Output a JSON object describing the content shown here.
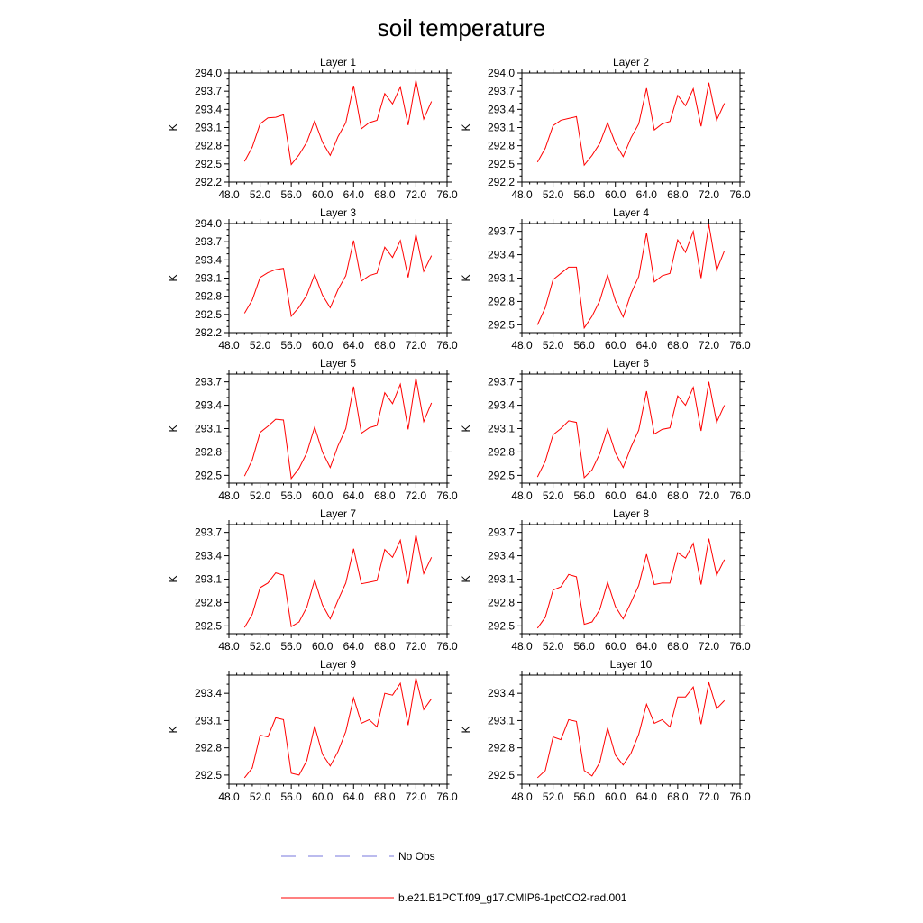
{
  "title": "soil temperature",
  "legend": {
    "entries": [
      {
        "label": "No Obs",
        "color": "#7777dd",
        "dash": true
      },
      {
        "label": "b.e21.B1PCT.f09_g17.CMIP6-1pctCO2-rad.001",
        "color": "#ff0000",
        "dash": false
      }
    ]
  },
  "chart_data": [
    {
      "type": "line",
      "title": "Layer 1",
      "xlabel": "",
      "ylabel": "K",
      "xlim": [
        48,
        76
      ],
      "ylim": [
        292.2,
        294.0
      ],
      "xticks": [
        "48.0",
        "52.0",
        "56.0",
        "60.0",
        "64.0",
        "68.0",
        "72.0",
        "76.0"
      ],
      "yticks": [
        "292.2",
        "292.5",
        "292.8",
        "293.1",
        "293.4",
        "293.7",
        "294.0"
      ],
      "series": [
        {
          "x": [
            50,
            51,
            52,
            53,
            54,
            55,
            56,
            57,
            58,
            59,
            60,
            61,
            62,
            63,
            64,
            65,
            66,
            67,
            68,
            69,
            70,
            71,
            72,
            73,
            74
          ],
          "values": [
            292.54,
            292.78,
            293.16,
            293.26,
            293.27,
            293.31,
            292.49,
            292.65,
            292.86,
            293.21,
            292.86,
            292.64,
            292.95,
            293.18,
            293.79,
            293.08,
            293.18,
            293.22,
            293.66,
            293.49,
            293.77,
            293.14,
            293.88,
            293.24,
            293.53
          ],
          "color": "#ff0000"
        }
      ]
    },
    {
      "type": "line",
      "title": "Layer 2",
      "xlabel": "",
      "ylabel": "K",
      "xlim": [
        48,
        76
      ],
      "ylim": [
        292.2,
        294.0
      ],
      "xticks": [
        "48.0",
        "52.0",
        "56.0",
        "60.0",
        "64.0",
        "68.0",
        "72.0",
        "76.0"
      ],
      "yticks": [
        "292.2",
        "292.5",
        "292.8",
        "293.1",
        "293.4",
        "293.7",
        "294.0"
      ],
      "series": [
        {
          "x": [
            50,
            51,
            52,
            53,
            54,
            55,
            56,
            57,
            58,
            59,
            60,
            61,
            62,
            63,
            64,
            65,
            66,
            67,
            68,
            69,
            70,
            71,
            72,
            73,
            74
          ],
          "values": [
            292.53,
            292.76,
            293.13,
            293.22,
            293.25,
            293.28,
            292.48,
            292.64,
            292.84,
            293.18,
            292.84,
            292.62,
            292.93,
            293.16,
            293.75,
            293.06,
            293.16,
            293.2,
            293.63,
            293.46,
            293.74,
            293.12,
            293.84,
            293.22,
            293.5
          ],
          "color": "#ff0000"
        }
      ]
    },
    {
      "type": "line",
      "title": "Layer 3",
      "xlabel": "",
      "ylabel": "K",
      "xlim": [
        48,
        76
      ],
      "ylim": [
        292.2,
        294.0
      ],
      "xticks": [
        "48.0",
        "52.0",
        "56.0",
        "60.0",
        "64.0",
        "68.0",
        "72.0",
        "76.0"
      ],
      "yticks": [
        "292.2",
        "292.5",
        "292.8",
        "293.1",
        "293.4",
        "293.7",
        "294.0"
      ],
      "series": [
        {
          "x": [
            50,
            51,
            52,
            53,
            54,
            55,
            56,
            57,
            58,
            59,
            60,
            61,
            62,
            63,
            64,
            65,
            66,
            67,
            68,
            69,
            70,
            71,
            72,
            73,
            74
          ],
          "values": [
            292.52,
            292.74,
            293.11,
            293.19,
            293.24,
            293.26,
            292.47,
            292.62,
            292.82,
            293.16,
            292.82,
            292.61,
            292.91,
            293.14,
            293.72,
            293.05,
            293.14,
            293.18,
            293.61,
            293.44,
            293.72,
            293.11,
            293.82,
            293.21,
            293.47
          ],
          "color": "#ff0000"
        }
      ]
    },
    {
      "type": "line",
      "title": "Layer 4",
      "xlabel": "",
      "ylabel": "K",
      "xlim": [
        48,
        76
      ],
      "ylim": [
        292.4,
        293.8
      ],
      "xticks": [
        "48.0",
        "52.0",
        "56.0",
        "60.0",
        "64.0",
        "68.0",
        "72.0",
        "76.0"
      ],
      "yticks": [
        "292.5",
        "292.8",
        "293.1",
        "293.4",
        "293.7"
      ],
      "series": [
        {
          "x": [
            50,
            51,
            52,
            53,
            54,
            55,
            56,
            57,
            58,
            59,
            60,
            61,
            62,
            63,
            64,
            65,
            66,
            67,
            68,
            69,
            70,
            71,
            72,
            73,
            74
          ],
          "values": [
            292.5,
            292.72,
            293.08,
            293.16,
            293.24,
            293.24,
            292.46,
            292.61,
            292.81,
            293.14,
            292.81,
            292.6,
            292.9,
            293.12,
            293.68,
            293.05,
            293.13,
            293.16,
            293.59,
            293.43,
            293.7,
            293.1,
            293.79,
            293.2,
            293.45
          ],
          "color": "#ff0000"
        }
      ]
    },
    {
      "type": "line",
      "title": "Layer 5",
      "xlabel": "",
      "ylabel": "K",
      "xlim": [
        48,
        76
      ],
      "ylim": [
        292.4,
        293.8
      ],
      "xticks": [
        "48.0",
        "52.0",
        "56.0",
        "60.0",
        "64.0",
        "68.0",
        "72.0",
        "76.0"
      ],
      "yticks": [
        "292.5",
        "292.8",
        "293.1",
        "293.4",
        "293.7"
      ],
      "series": [
        {
          "x": [
            50,
            51,
            52,
            53,
            54,
            55,
            56,
            57,
            58,
            59,
            60,
            61,
            62,
            63,
            64,
            65,
            66,
            67,
            68,
            69,
            70,
            71,
            72,
            73,
            74
          ],
          "values": [
            292.49,
            292.7,
            293.05,
            293.13,
            293.22,
            293.21,
            292.46,
            292.59,
            292.79,
            293.12,
            292.8,
            292.6,
            292.88,
            293.1,
            293.64,
            293.04,
            293.11,
            293.14,
            293.56,
            293.42,
            293.67,
            293.09,
            293.75,
            293.19,
            293.43
          ],
          "color": "#ff0000"
        }
      ]
    },
    {
      "type": "line",
      "title": "Layer 6",
      "xlabel": "",
      "ylabel": "K",
      "xlim": [
        48,
        76
      ],
      "ylim": [
        292.4,
        293.8
      ],
      "xticks": [
        "48.0",
        "52.0",
        "56.0",
        "60.0",
        "64.0",
        "68.0",
        "72.0",
        "76.0"
      ],
      "yticks": [
        "292.5",
        "292.8",
        "293.1",
        "293.4",
        "293.7"
      ],
      "series": [
        {
          "x": [
            50,
            51,
            52,
            53,
            54,
            55,
            56,
            57,
            58,
            59,
            60,
            61,
            62,
            63,
            64,
            65,
            66,
            67,
            68,
            69,
            70,
            71,
            72,
            73,
            74
          ],
          "values": [
            292.48,
            292.68,
            293.02,
            293.1,
            293.2,
            293.18,
            292.47,
            292.57,
            292.78,
            293.1,
            292.79,
            292.6,
            292.86,
            293.08,
            293.58,
            293.03,
            293.09,
            293.11,
            293.52,
            293.4,
            293.63,
            293.07,
            293.7,
            293.18,
            293.4
          ],
          "color": "#ff0000"
        }
      ]
    },
    {
      "type": "line",
      "title": "Layer 7",
      "xlabel": "",
      "ylabel": "K",
      "xlim": [
        48,
        76
      ],
      "ylim": [
        292.4,
        293.8
      ],
      "xticks": [
        "48.0",
        "52.0",
        "56.0",
        "60.0",
        "64.0",
        "68.0",
        "72.0",
        "76.0"
      ],
      "yticks": [
        "292.5",
        "292.8",
        "293.1",
        "293.4",
        "293.7"
      ],
      "series": [
        {
          "x": [
            50,
            51,
            52,
            53,
            54,
            55,
            56,
            57,
            58,
            59,
            60,
            61,
            62,
            63,
            64,
            65,
            66,
            67,
            68,
            69,
            70,
            71,
            72,
            73,
            74
          ],
          "values": [
            292.48,
            292.65,
            292.99,
            293.05,
            293.18,
            293.15,
            292.49,
            292.55,
            292.74,
            293.09,
            292.77,
            292.59,
            292.83,
            293.05,
            293.49,
            293.04,
            293.06,
            293.08,
            293.48,
            293.38,
            293.6,
            293.04,
            293.67,
            293.17,
            293.38
          ],
          "color": "#ff0000"
        }
      ]
    },
    {
      "type": "line",
      "title": "Layer 8",
      "xlabel": "",
      "ylabel": "K",
      "xlim": [
        48,
        76
      ],
      "ylim": [
        292.4,
        293.8
      ],
      "xticks": [
        "48.0",
        "52.0",
        "56.0",
        "60.0",
        "64.0",
        "68.0",
        "72.0",
        "76.0"
      ],
      "yticks": [
        "292.5",
        "292.8",
        "293.1",
        "293.4",
        "293.7"
      ],
      "series": [
        {
          "x": [
            50,
            51,
            52,
            53,
            54,
            55,
            56,
            57,
            58,
            59,
            60,
            61,
            62,
            63,
            64,
            65,
            66,
            67,
            68,
            69,
            70,
            71,
            72,
            73,
            74
          ],
          "values": [
            292.47,
            292.61,
            292.96,
            293.0,
            293.16,
            293.13,
            292.52,
            292.55,
            292.71,
            293.06,
            292.75,
            292.59,
            292.8,
            293.02,
            293.42,
            293.03,
            293.05,
            293.05,
            293.44,
            293.37,
            293.56,
            293.03,
            293.62,
            293.15,
            293.35
          ],
          "color": "#ff0000"
        }
      ]
    },
    {
      "type": "line",
      "title": "Layer 9",
      "xlabel": "",
      "ylabel": "K",
      "xlim": [
        48,
        76
      ],
      "ylim": [
        292.4,
        293.6
      ],
      "xticks": [
        "48.0",
        "52.0",
        "56.0",
        "60.0",
        "64.0",
        "68.0",
        "72.0",
        "76.0"
      ],
      "yticks": [
        "292.5",
        "292.8",
        "293.1",
        "293.4"
      ],
      "series": [
        {
          "x": [
            50,
            51,
            52,
            53,
            54,
            55,
            56,
            57,
            58,
            59,
            60,
            61,
            62,
            63,
            64,
            65,
            66,
            67,
            68,
            69,
            70,
            71,
            72,
            73,
            74
          ],
          "values": [
            292.47,
            292.58,
            292.94,
            292.92,
            293.13,
            293.11,
            292.52,
            292.5,
            292.66,
            293.04,
            292.73,
            292.6,
            292.76,
            292.98,
            293.35,
            293.07,
            293.11,
            293.03,
            293.4,
            293.38,
            293.51,
            293.05,
            293.57,
            293.22,
            293.34
          ],
          "color": "#ff0000"
        }
      ]
    },
    {
      "type": "line",
      "title": "Layer 10",
      "xlabel": "",
      "ylabel": "K",
      "xlim": [
        48,
        76
      ],
      "ylim": [
        292.4,
        293.6
      ],
      "xticks": [
        "48.0",
        "52.0",
        "56.0",
        "60.0",
        "64.0",
        "68.0",
        "72.0",
        "76.0"
      ],
      "yticks": [
        "292.5",
        "292.8",
        "293.1",
        "293.4"
      ],
      "series": [
        {
          "x": [
            50,
            51,
            52,
            53,
            54,
            55,
            56,
            57,
            58,
            59,
            60,
            61,
            62,
            63,
            64,
            65,
            66,
            67,
            68,
            69,
            70,
            71,
            72,
            73,
            74
          ],
          "values": [
            292.47,
            292.55,
            292.92,
            292.89,
            293.11,
            293.09,
            292.55,
            292.49,
            292.64,
            293.02,
            292.72,
            292.61,
            292.74,
            292.95,
            293.28,
            293.07,
            293.11,
            293.03,
            293.36,
            293.36,
            293.47,
            293.06,
            293.52,
            293.23,
            293.32
          ],
          "color": "#ff0000"
        }
      ]
    }
  ]
}
